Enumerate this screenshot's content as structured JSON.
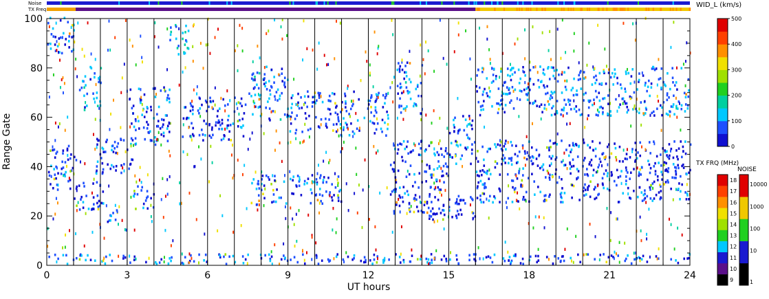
{
  "chart_data": {
    "type": "heatmap",
    "title": "",
    "xlabel": "UT hours",
    "ylabel": "Range Gate",
    "x_ticks": [
      "0",
      "3",
      "6",
      "9",
      "12",
      "15",
      "18",
      "21",
      "24"
    ],
    "y_ticks": [
      "0",
      "20",
      "40",
      "60",
      "80",
      "100"
    ],
    "xlim": [
      0,
      24
    ],
    "ylim": [
      0,
      100
    ],
    "hour_lines": [
      1,
      2,
      3,
      4,
      5,
      6,
      7,
      8,
      9,
      10,
      11,
      12,
      13,
      14,
      15,
      16,
      17,
      18,
      19,
      20,
      21,
      22,
      23
    ],
    "top_strips": {
      "noise_label": "Noise",
      "txfrq_label": "TX Freq",
      "txfrq_change_hour": 16.0,
      "noise_color": "#1a1ad0",
      "txfrq_color_before": "#5a0f8a",
      "txfrq_color_after": "#f0c800"
    },
    "colorbar_width": {
      "label": "WID_L (km/s)",
      "ticks": [
        "0",
        "100",
        "200",
        "300",
        "400",
        "500"
      ],
      "range": [
        0,
        500
      ],
      "colors": [
        "#1010d0",
        "#1e50ff",
        "#00c8ff",
        "#00d0a0",
        "#20d020",
        "#a0e000",
        "#f0e000",
        "#ff9000",
        "#ff4000",
        "#e00000"
      ]
    },
    "colorbar_txfrq": {
      "label": "TX FRQ (MHz)",
      "ticks": [
        "9",
        "10",
        "11",
        "12",
        "13",
        "14",
        "15",
        "16",
        "17",
        "18"
      ],
      "colors": [
        "#000000",
        "#5a0f8a",
        "#1a1ad0",
        "#00c8ff",
        "#20d020",
        "#a0e000",
        "#f0e000",
        "#ff9000",
        "#ff4000",
        "#e00000"
      ]
    },
    "colorbar_noise": {
      "label": "NOISE",
      "ticks": [
        "1",
        "10",
        "100",
        "1000",
        "10000"
      ],
      "colors": [
        "#000000",
        "#1a1ad0",
        "#20d020",
        "#f0c800",
        "#e00000"
      ]
    },
    "echo_bands": [
      {
        "x": [
          0,
          1.1
        ],
        "y": [
          30,
          48
        ],
        "value": 60
      },
      {
        "x": [
          0,
          1.0
        ],
        "y": [
          85,
          100
        ],
        "value": 90
      },
      {
        "x": [
          1.0,
          2.2
        ],
        "y": [
          22,
          34
        ],
        "value": 50
      },
      {
        "x": [
          1.2,
          2.0
        ],
        "y": [
          62,
          80
        ],
        "value": 100
      },
      {
        "x": [
          1.8,
          3.2
        ],
        "y": [
          36,
          52
        ],
        "value": 60
      },
      {
        "x": [
          2.0,
          2.6
        ],
        "y": [
          16,
          22
        ],
        "value": 60
      },
      {
        "x": [
          3.2,
          4.0
        ],
        "y": [
          22,
          32
        ],
        "value": 60
      },
      {
        "x": [
          3.0,
          4.6
        ],
        "y": [
          48,
          72
        ],
        "value": 70
      },
      {
        "x": [
          4.5,
          5.3
        ],
        "y": [
          85,
          98
        ],
        "value": 120
      },
      {
        "x": [
          5.0,
          7.4
        ],
        "y": [
          50,
          68
        ],
        "value": 60
      },
      {
        "x": [
          7.5,
          9.0
        ],
        "y": [
          58,
          80
        ],
        "value": 100
      },
      {
        "x": [
          7.6,
          11.0
        ],
        "y": [
          24,
          36
        ],
        "value": 60
      },
      {
        "x": [
          9.0,
          12.8
        ],
        "y": [
          52,
          70
        ],
        "value": 70
      },
      {
        "x": [
          12.8,
          15.0
        ],
        "y": [
          20,
          50
        ],
        "value": 60
      },
      {
        "x": [
          13.0,
          14.0
        ],
        "y": [
          60,
          82
        ],
        "value": 100
      },
      {
        "x": [
          14.2,
          16.0
        ],
        "y": [
          18,
          28
        ],
        "value": 40
      },
      {
        "x": [
          15.0,
          16.0
        ],
        "y": [
          40,
          60
        ],
        "value": 60
      },
      {
        "x": [
          16.0,
          24.0
        ],
        "y": [
          25,
          50
        ],
        "value": 60
      },
      {
        "x": [
          16.0,
          24.0
        ],
        "y": [
          60,
          80
        ],
        "value": 90
      },
      {
        "x": [
          0,
          24.0
        ],
        "y": [
          0,
          4
        ],
        "value": 70
      }
    ]
  }
}
